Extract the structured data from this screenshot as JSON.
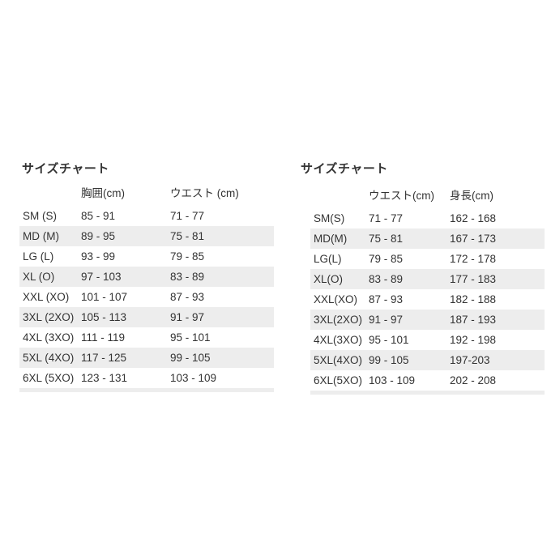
{
  "colors": {
    "background": "#ffffff",
    "text": "#333333",
    "row_stripe": "#ededed"
  },
  "tables": [
    {
      "title": "サイズチャート",
      "columns": [
        "",
        "胸囲(cm)",
        "ウエスト (cm)"
      ],
      "rows": [
        [
          "SM (S)",
          "85 - 91",
          "71 - 77"
        ],
        [
          "MD (M)",
          "89 - 95",
          "75 - 81"
        ],
        [
          "LG (L)",
          "93 - 99",
          "79 - 85"
        ],
        [
          "XL (O)",
          "97 - 103",
          "83 - 89"
        ],
        [
          "XXL (XO)",
          "101 - 107",
          "87 - 93"
        ],
        [
          "3XL (2XO)",
          "105 - 113",
          "91 - 97"
        ],
        [
          "4XL (3XO)",
          "111 - 119",
          "95 - 101"
        ],
        [
          "5XL (4XO)",
          "117 - 125",
          "99 - 105"
        ],
        [
          "6XL (5XO)",
          "123 - 131",
          "103 - 109"
        ]
      ]
    },
    {
      "title": "サイズチャート",
      "columns": [
        "",
        "ウエスト(cm)",
        "身長(cm)"
      ],
      "rows": [
        [
          "SM(S)",
          "71 - 77",
          "162 - 168"
        ],
        [
          "MD(M)",
          "75 - 81",
          "167 - 173"
        ],
        [
          "LG(L)",
          "79 - 85",
          "172 - 178"
        ],
        [
          "XL(O)",
          "83 - 89",
          "177 - 183"
        ],
        [
          "XXL(XO)",
          "87 - 93",
          "182 - 188"
        ],
        [
          "3XL(2XO)",
          "91 - 97",
          "187 - 193"
        ],
        [
          "4XL(3XO)",
          "95 - 101",
          "192 - 198"
        ],
        [
          "5XL(4XO)",
          "99 - 105",
          "197-203"
        ],
        [
          "6XL(5XO)",
          "103 - 109",
          "202 - 208"
        ]
      ]
    }
  ]
}
